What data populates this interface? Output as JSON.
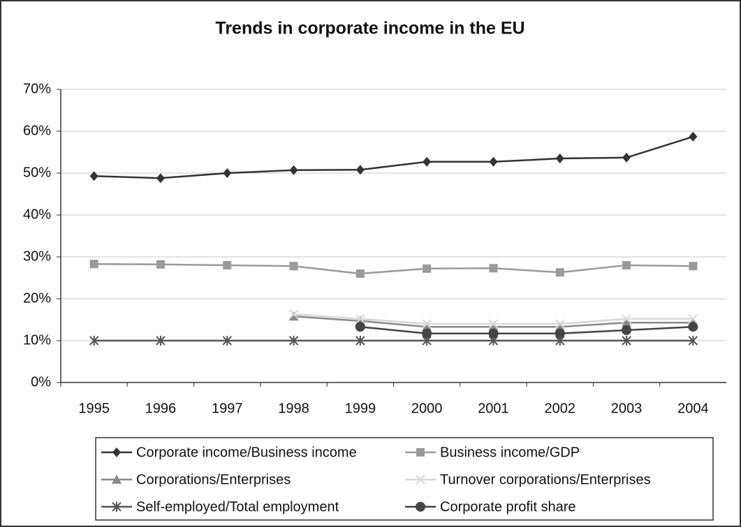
{
  "chart_data": {
    "type": "line",
    "title": "Trends in corporate income in the EU",
    "categories": [
      "1995",
      "1996",
      "1997",
      "1998",
      "1999",
      "2000",
      "2001",
      "2002",
      "2003",
      "2004"
    ],
    "ylim": [
      0,
      70
    ],
    "yticks": [
      {
        "value": 0,
        "label": "0%"
      },
      {
        "value": 10,
        "label": "10%"
      },
      {
        "value": 20,
        "label": "20%"
      },
      {
        "value": 30,
        "label": "30%"
      },
      {
        "value": 40,
        "label": "40%"
      },
      {
        "value": 50,
        "label": "50%"
      },
      {
        "value": 60,
        "label": "60%"
      },
      {
        "value": 70,
        "label": "70%"
      }
    ],
    "grid": true,
    "legend": "bottom",
    "series": [
      {
        "name": "Corporate income/Business income",
        "color": "#333333",
        "marker": "diamond",
        "values": [
          49.3,
          48.8,
          50,
          50.7,
          50.8,
          52.7,
          52.7,
          53.5,
          53.7,
          58.7
        ]
      },
      {
        "name": "Business income/GDP",
        "color": "#9a9a9a",
        "marker": "square",
        "values": [
          28.3,
          28.2,
          28,
          27.8,
          26,
          27.2,
          27.3,
          26.3,
          28,
          27.8
        ]
      },
      {
        "name": "Corporations/Enterprises",
        "color": "#8a8a8a",
        "marker": "triangle",
        "values": [
          null,
          null,
          null,
          15.8,
          14.7,
          13.3,
          13.3,
          13.3,
          14.3,
          14.3
        ]
      },
      {
        "name": "Turnover corporations/Enterprises",
        "color": "#d8d8d8",
        "marker": "cross",
        "values": [
          null,
          null,
          null,
          16.3,
          15.2,
          14,
          14,
          14,
          15.2,
          15.2
        ]
      },
      {
        "name": "Self-employed/Total employment",
        "color": "#555555",
        "marker": "asterisk",
        "values": [
          10,
          10,
          10,
          10,
          10,
          10,
          10,
          10,
          10,
          10
        ]
      },
      {
        "name": "Corporate profit share",
        "color": "#444444",
        "marker": "circle",
        "values": [
          null,
          null,
          null,
          null,
          13.3,
          11.7,
          11.7,
          11.7,
          12.5,
          13.3
        ]
      }
    ]
  }
}
